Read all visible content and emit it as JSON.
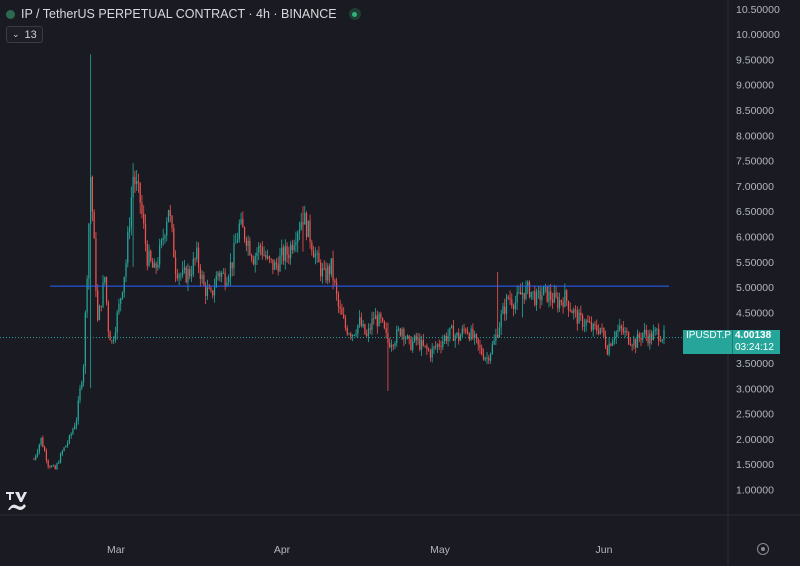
{
  "header": {
    "title": "IP / TetherUS PERPETUAL CONTRACT · 4h · BINANCE",
    "indicator_count": "13",
    "logo_icon": "tradingview-logo-icon",
    "live_icon": "live-status-icon"
  },
  "price_tag": {
    "symbol": "IPUSDT.P",
    "value": "4.00138",
    "countdown": "03:24:12"
  },
  "colors": {
    "background": "#1a1b22",
    "up": "#26a69a",
    "down": "#ef5350",
    "resistance_line": "#2962ff",
    "axis_text": "#b2b5be"
  },
  "chart_data": {
    "type": "candlestick",
    "title": "IP / TetherUS PERPETUAL CONTRACT · 4h · BINANCE",
    "xlabel": "",
    "ylabel": "",
    "x_tick_labels": [
      "Mar",
      "Apr",
      "May",
      "Jun"
    ],
    "y_tick_labels": [
      "10.50000",
      "10.00000",
      "9.50000",
      "9.00000",
      "8.50000",
      "8.00000",
      "7.50000",
      "7.00000",
      "6.50000",
      "6.00000",
      "5.50000",
      "5.00000",
      "4.50000",
      "4.00000",
      "3.50000",
      "3.00000",
      "2.50000",
      "2.00000",
      "1.50000",
      "1.00000"
    ],
    "ylim": [
      0.8,
      10.6
    ],
    "grid": false,
    "horizontal_line": 5.02,
    "last_price": 4.00138,
    "price_path": [
      [
        0,
        1.6
      ],
      [
        2,
        2.0
      ],
      [
        4,
        1.5
      ],
      [
        6,
        1.4
      ],
      [
        8,
        1.75
      ],
      [
        10,
        2.0
      ],
      [
        12,
        2.4
      ],
      [
        14,
        3.5
      ],
      [
        16,
        7.2
      ],
      [
        17,
        5.8
      ],
      [
        18,
        4.3
      ],
      [
        20,
        5.2
      ],
      [
        21,
        4.2
      ],
      [
        22,
        3.9
      ],
      [
        24,
        4.6
      ],
      [
        26,
        5.5
      ],
      [
        28,
        7.2
      ],
      [
        30,
        6.7
      ],
      [
        32,
        5.6
      ],
      [
        34,
        5.3
      ],
      [
        36,
        5.8
      ],
      [
        38,
        6.6
      ],
      [
        40,
        5.4
      ],
      [
        42,
        5.2
      ],
      [
        44,
        5.3
      ],
      [
        46,
        5.6
      ],
      [
        48,
        5.0
      ],
      [
        50,
        4.8
      ],
      [
        52,
        5.3
      ],
      [
        54,
        5.2
      ],
      [
        56,
        5.5
      ],
      [
        58,
        6.2
      ],
      [
        60,
        6.0
      ],
      [
        62,
        5.6
      ],
      [
        64,
        5.8
      ],
      [
        66,
        5.5
      ],
      [
        68,
        5.4
      ],
      [
        70,
        5.6
      ],
      [
        72,
        5.7
      ],
      [
        74,
        6.1
      ],
      [
        76,
        6.4
      ],
      [
        78,
        6.0
      ],
      [
        80,
        5.5
      ],
      [
        82,
        5.2
      ],
      [
        84,
        5.4
      ],
      [
        86,
        4.6
      ],
      [
        88,
        4.2
      ],
      [
        90,
        4.1
      ],
      [
        92,
        4.3
      ],
      [
        94,
        4.0
      ],
      [
        96,
        4.4
      ],
      [
        98,
        4.3
      ],
      [
        100,
        3.9
      ],
      [
        102,
        4.0
      ],
      [
        104,
        4.2
      ],
      [
        106,
        3.85
      ],
      [
        108,
        3.95
      ],
      [
        110,
        3.8
      ],
      [
        112,
        3.7
      ],
      [
        114,
        3.85
      ],
      [
        116,
        4.0
      ],
      [
        118,
        4.1
      ],
      [
        120,
        4.0
      ],
      [
        122,
        4.2
      ],
      [
        124,
        4.0
      ],
      [
        126,
        3.75
      ],
      [
        128,
        3.6
      ],
      [
        130,
        3.9
      ],
      [
        132,
        4.4
      ],
      [
        134,
        4.8
      ],
      [
        136,
        4.7
      ],
      [
        138,
        4.9
      ],
      [
        140,
        4.95
      ],
      [
        142,
        4.75
      ],
      [
        144,
        4.9
      ],
      [
        146,
        4.8
      ],
      [
        148,
        4.7
      ],
      [
        150,
        4.8
      ],
      [
        152,
        4.55
      ],
      [
        154,
        4.35
      ],
      [
        156,
        4.3
      ],
      [
        158,
        4.15
      ],
      [
        160,
        4.2
      ],
      [
        162,
        3.8
      ],
      [
        164,
        4.1
      ],
      [
        166,
        4.15
      ],
      [
        168,
        4.0
      ],
      [
        170,
        3.9
      ],
      [
        172,
        4.1
      ],
      [
        174,
        4.0
      ],
      [
        176,
        4.1
      ],
      [
        178,
        4.02
      ]
    ],
    "spikes": [
      {
        "index": 16,
        "high": 9.6,
        "low": 3.0
      },
      {
        "index": 28,
        "high": 7.45,
        "low": 5.4
      },
      {
        "index": 76,
        "high": 6.6,
        "low": 5.7
      },
      {
        "index": 100,
        "high": 4.3,
        "low": 2.95
      },
      {
        "index": 131,
        "high": 5.3,
        "low": 4.3
      },
      {
        "index": 138,
        "high": 5.1,
        "low": 4.4
      }
    ]
  }
}
